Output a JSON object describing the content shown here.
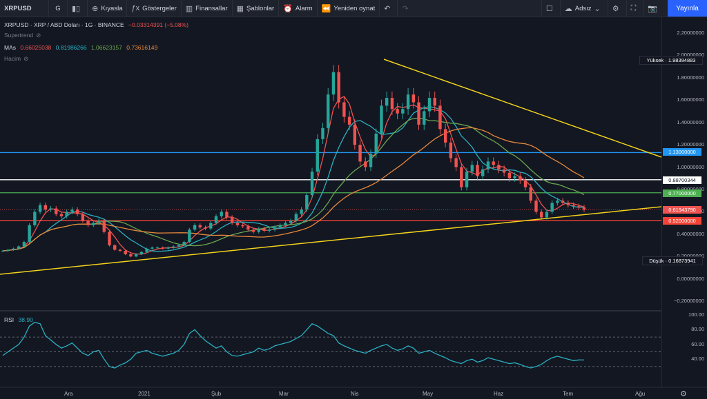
{
  "toolbar": {
    "symbol": "XRPUSD",
    "interval": "G",
    "compare": "Kıyasla",
    "indicators": "Göstergeler",
    "financials": "Finansallar",
    "templates": "Şablonlar",
    "alarm": "Alarm",
    "replay": "Yeniden oynat",
    "layout_name": "Adsız",
    "publish": "Yayınla"
  },
  "legend": {
    "title": "XRPUSD · XRP / ABD Doları · 1G · BINANCE",
    "change": "−0.03314391 (−5.08%)",
    "supertrend": "Supertrend",
    "mas_label": "MAs",
    "ma_values": [
      "0.66025038",
      "0.81986266",
      "1.06623157",
      "0.73616149"
    ],
    "volume": "Hacim"
  },
  "colors": {
    "up": "#26a69a",
    "down": "#ef5350",
    "ma1": "#ef5350",
    "ma2": "#2ab0c2",
    "ma3": "#6aa84f",
    "ma4": "#e8883a",
    "trendline": "#f2d21b",
    "blue_level": "#2196f3",
    "green_level": "#4caf50",
    "red_level": "#f44336",
    "white_level": "#ffffff",
    "rsi": "#2ab0c2"
  },
  "price_axis": [
    "2.20000000",
    "2.00000000",
    "1.80000000",
    "1.60000000",
    "1.40000000",
    "1.20000000",
    "1.00000000",
    "0.80000000",
    "0.60000000",
    "0.40000000",
    "0.20000000",
    "0.00000000",
    "−0.20000000"
  ],
  "price_tags": {
    "high_label": "Yüksek",
    "high_value": "1.98394883",
    "low_label": "Düşük",
    "low_value": "0.16873941",
    "blue": "1.13000000",
    "white": "0.88700344",
    "green": "0.77000000",
    "last": "0.61943790",
    "red": "0.52000000"
  },
  "rsi": {
    "label": "RSI",
    "value": "38.90",
    "axis": [
      "100.00",
      "80.00",
      "60.00",
      "40.00"
    ]
  },
  "time_axis": [
    "Ara",
    "2021",
    "Şub",
    "Mar",
    "Nis",
    "May",
    "Haz",
    "Tem",
    "Ağu"
  ],
  "chart_data": {
    "type": "candlestick",
    "ylim": [
      -0.25,
      2.3
    ],
    "levels": {
      "blue": 1.13,
      "white": 0.887,
      "green": 0.77,
      "red": 0.52
    },
    "high": 1.98394883,
    "low": 0.16873941,
    "close_series": [
      0.25,
      0.26,
      0.27,
      0.29,
      0.33,
      0.48,
      0.6,
      0.66,
      0.62,
      0.63,
      0.58,
      0.56,
      0.6,
      0.62,
      0.58,
      0.52,
      0.48,
      0.5,
      0.52,
      0.42,
      0.3,
      0.26,
      0.25,
      0.22,
      0.2,
      0.22,
      0.24,
      0.27,
      0.28,
      0.28,
      0.27,
      0.28,
      0.29,
      0.3,
      0.33,
      0.44,
      0.48,
      0.46,
      0.45,
      0.5,
      0.56,
      0.6,
      0.55,
      0.5,
      0.48,
      0.47,
      0.44,
      0.42,
      0.45,
      0.43,
      0.44,
      0.46,
      0.48,
      0.5,
      0.52,
      0.58,
      0.62,
      0.75,
      0.96,
      1.25,
      1.35,
      1.65,
      1.85,
      1.58,
      1.45,
      1.38,
      1.2,
      1.05,
      1.0,
      1.12,
      1.3,
      1.55,
      1.62,
      1.52,
      1.48,
      1.52,
      1.65,
      1.58,
      1.38,
      1.5,
      1.62,
      1.55,
      1.34,
      1.22,
      1.08,
      1.0,
      0.82,
      0.96,
      1.02,
      0.92,
      0.98,
      1.05,
      1.02,
      0.98,
      0.95,
      0.9,
      0.92,
      0.88,
      0.82,
      0.7,
      0.6,
      0.55,
      0.6,
      0.68,
      0.7,
      0.68,
      0.66,
      0.65,
      0.64,
      0.62
    ],
    "rsi_series": [
      45,
      50,
      55,
      60,
      70,
      85,
      90,
      88,
      72,
      66,
      60,
      55,
      58,
      62,
      55,
      48,
      45,
      50,
      52,
      40,
      30,
      28,
      32,
      35,
      40,
      48,
      50,
      52,
      48,
      46,
      44,
      46,
      48,
      52,
      60,
      75,
      80,
      72,
      65,
      60,
      55,
      58,
      50,
      45,
      44,
      46,
      48,
      50,
      55,
      52,
      54,
      58,
      60,
      62,
      64,
      68,
      72,
      80,
      88,
      85,
      80,
      75,
      72,
      62,
      58,
      55,
      52,
      50,
      48,
      52,
      55,
      58,
      60,
      55,
      52,
      54,
      58,
      55,
      48,
      50,
      52,
      48,
      45,
      42,
      38,
      36,
      34,
      38,
      40,
      36,
      38,
      42,
      40,
      38,
      36,
      34,
      35,
      33,
      30,
      28,
      30,
      33,
      38,
      42,
      44,
      42,
      40,
      38,
      39,
      38.9
    ]
  }
}
